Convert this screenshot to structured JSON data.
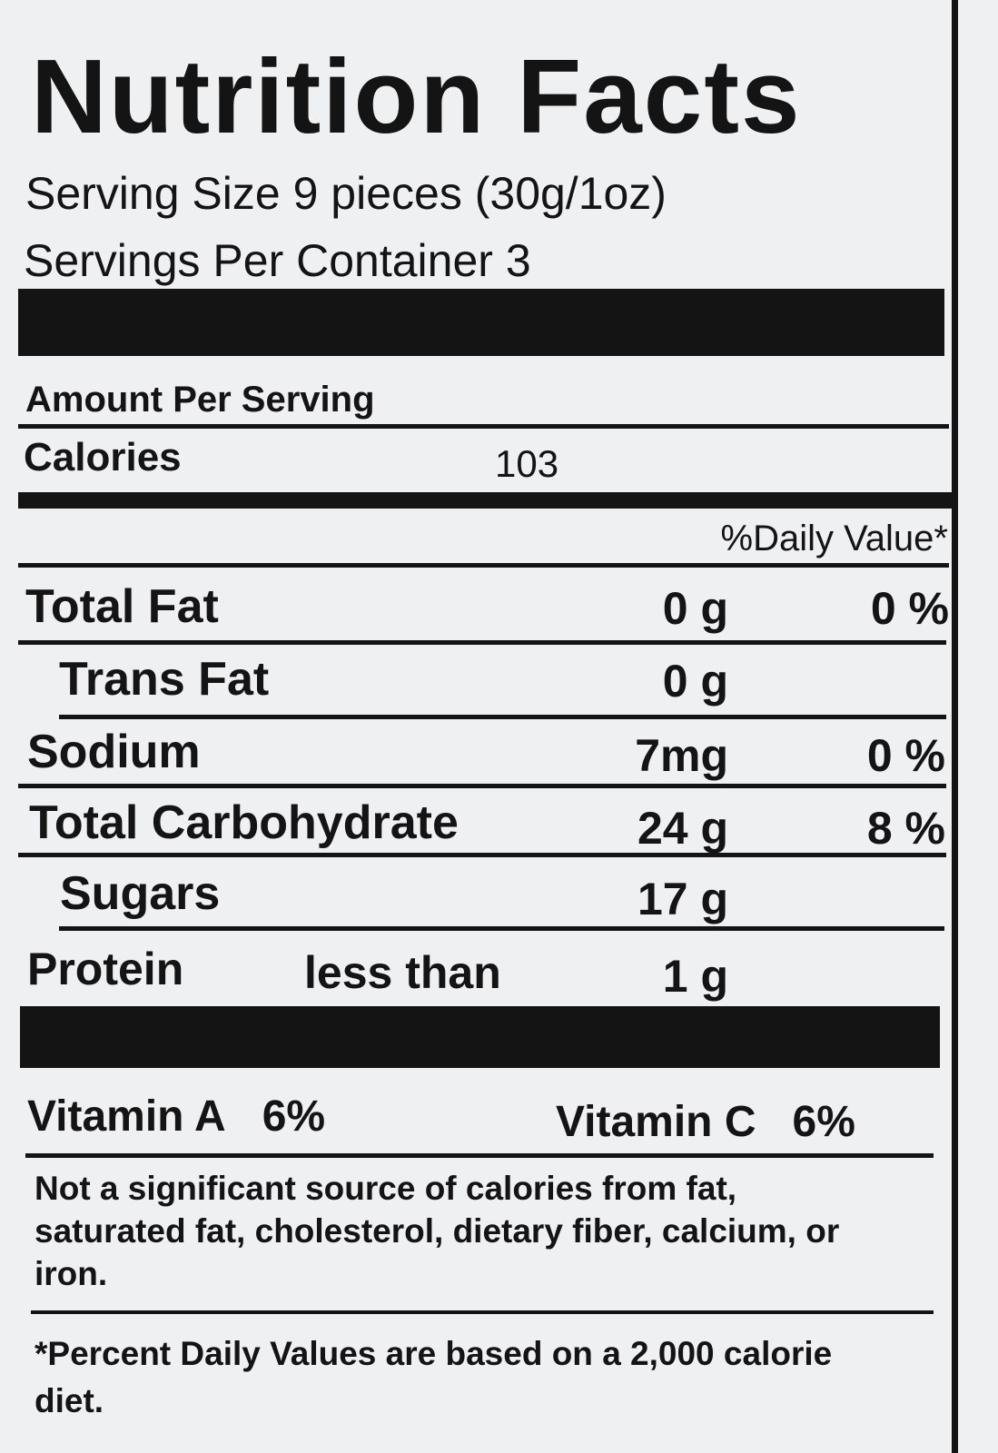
{
  "title": "Nutrition Facts",
  "serving_size": {
    "label": "Serving Size",
    "value": "9 pieces (30g/1oz)"
  },
  "servings_per_container": {
    "label": "Servings  Per Container",
    "value": "3"
  },
  "amount_per_serving": "Amount Per Serving",
  "calories": {
    "label": "Calories",
    "value": "103"
  },
  "daily_value_header": "%Daily Value*",
  "rows": [
    {
      "name": "Total Fat",
      "amount": "0 g",
      "dv": "0 %"
    },
    {
      "name": "Trans Fat",
      "amount": "0 g"
    },
    {
      "name": "Sodium",
      "amount": "7mg",
      "dv": "0 %"
    },
    {
      "name": "Total Carbohydrate",
      "amount": "24 g",
      "dv": "8 %"
    },
    {
      "name": "Sugars",
      "amount": "17 g"
    },
    {
      "name": "Protein",
      "qualifier": "less than",
      "amount": "1 g"
    }
  ],
  "vitamins": [
    {
      "name": "Vitamin A",
      "dv": "6%"
    },
    {
      "name": "Vitamin C",
      "dv": "6%"
    }
  ],
  "footnote": "Not a significant source of calories from fat, saturated fat, cholesterol, dietary fiber, calcium, or iron.",
  "disclaimer": "*Percent Daily Values are based on a 2,000 calorie diet."
}
